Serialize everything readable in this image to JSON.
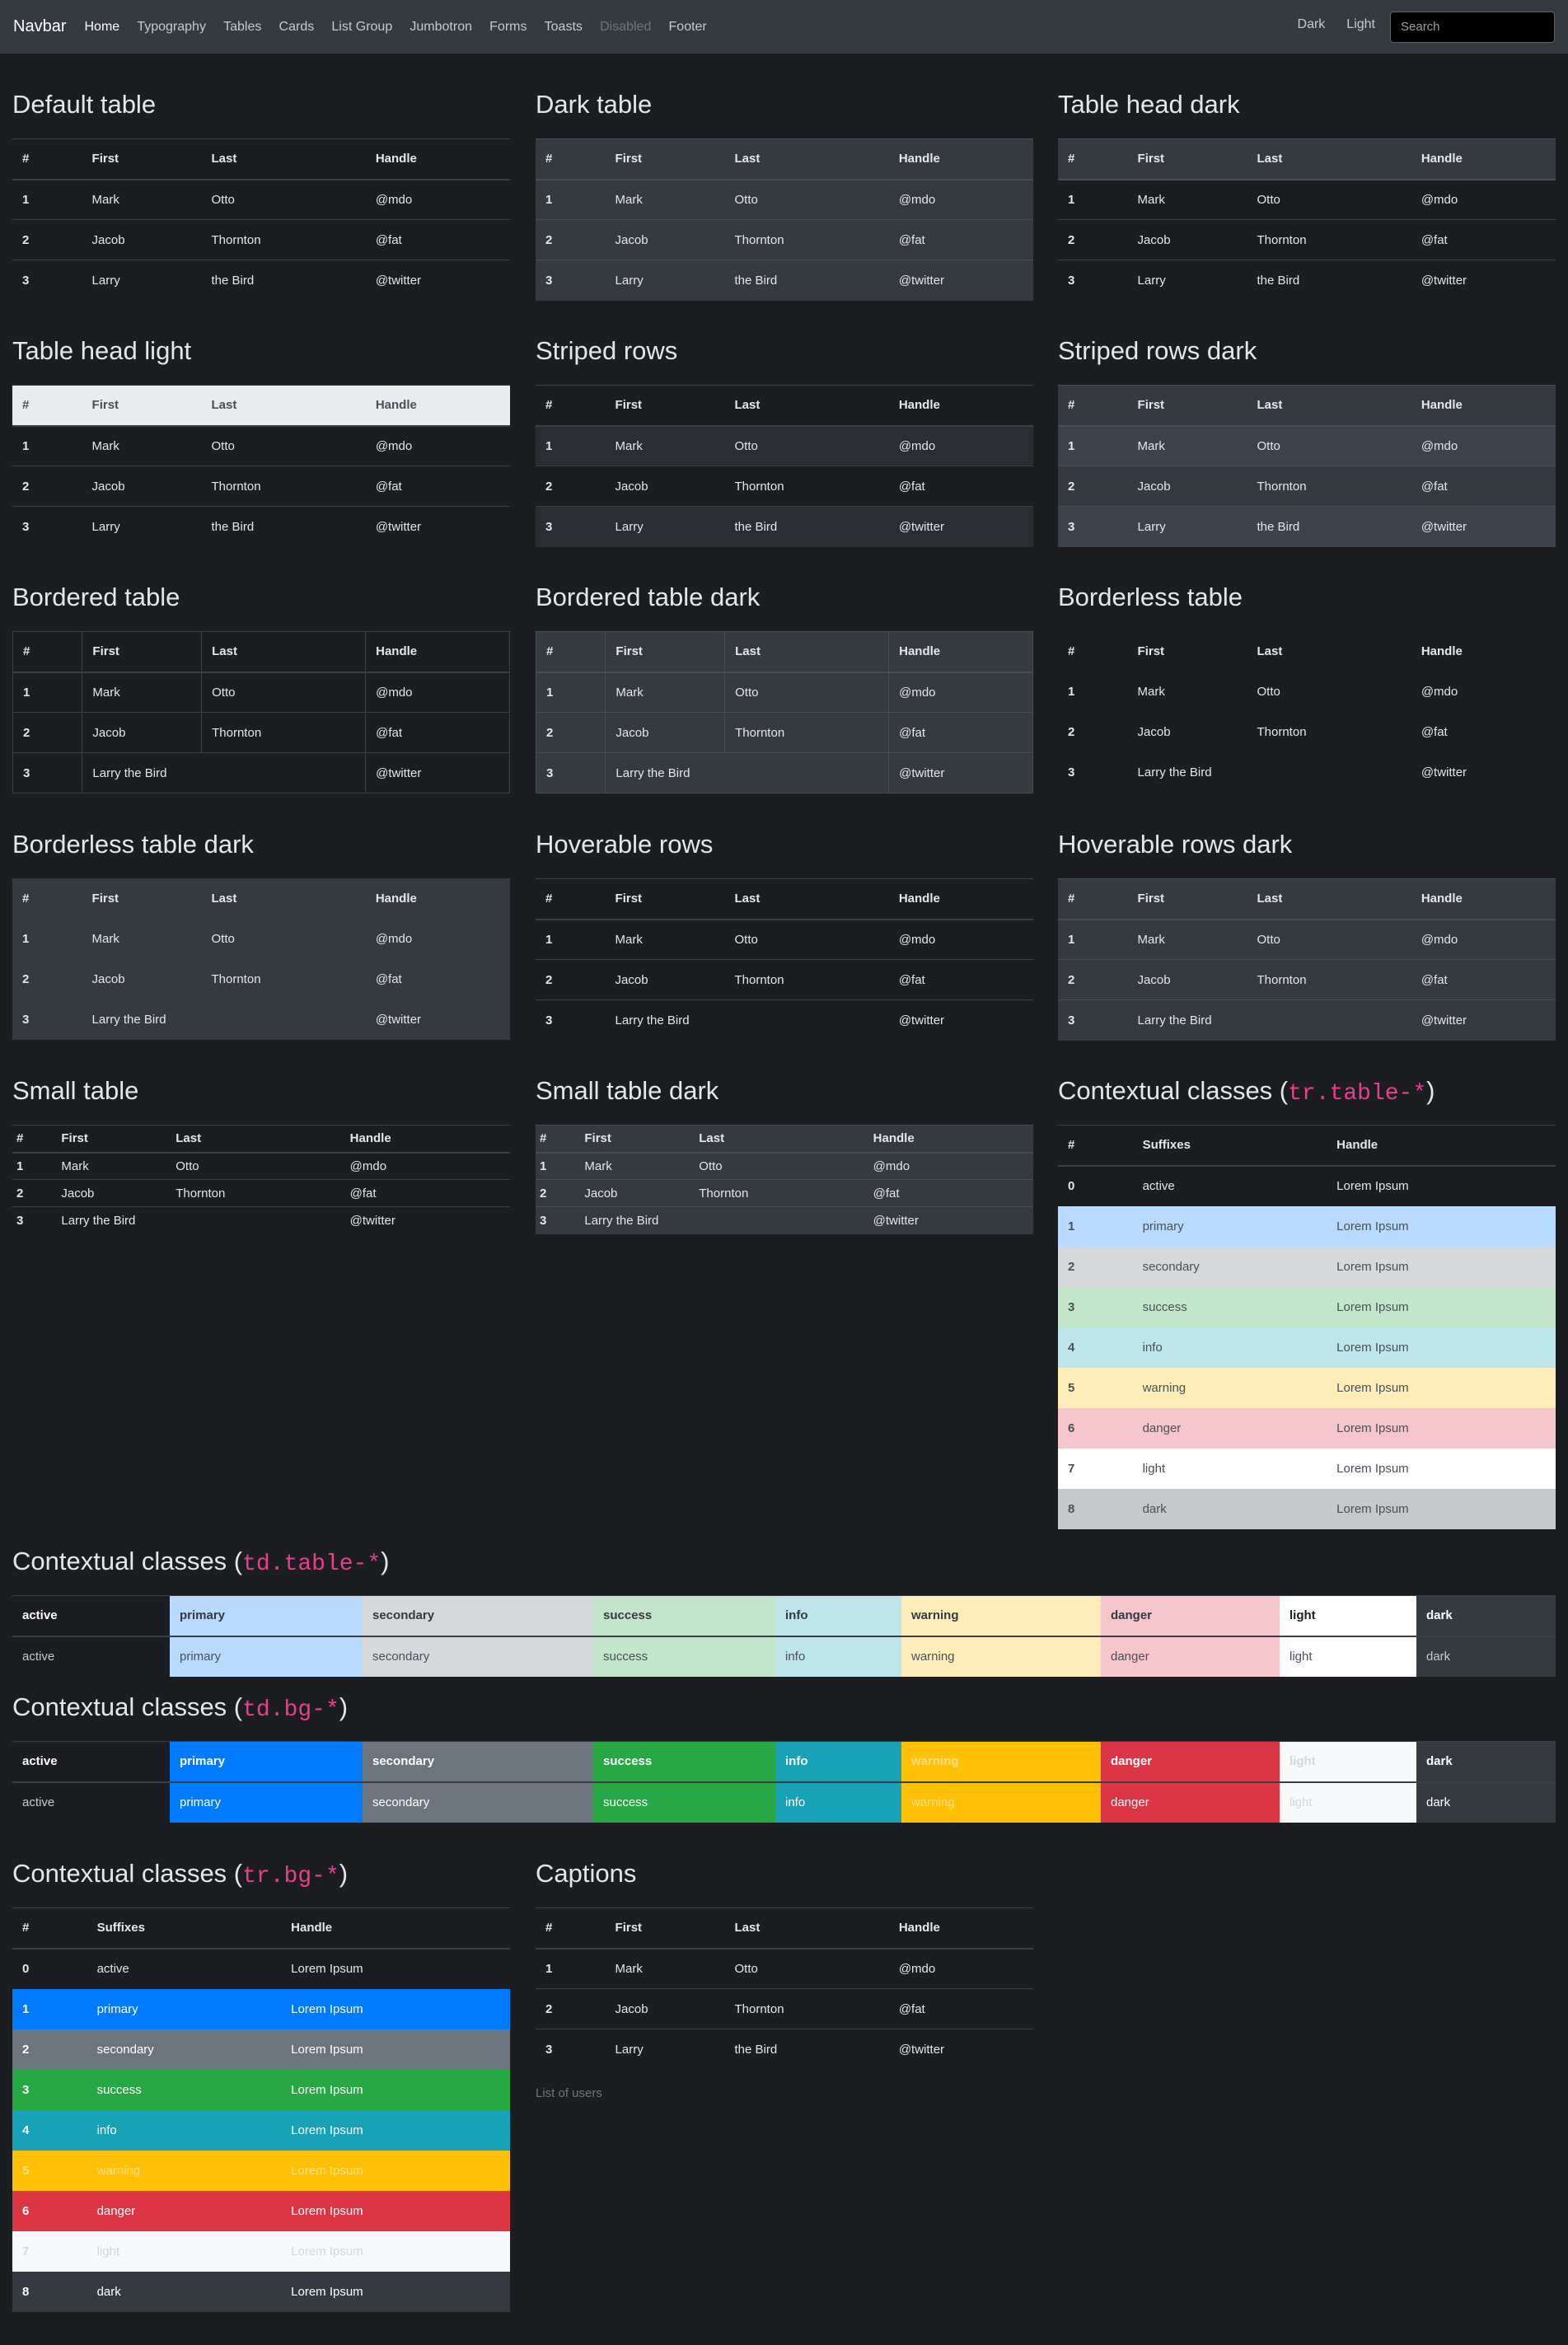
{
  "navbar": {
    "brand": "Navbar",
    "links": [
      "Home",
      "Typography",
      "Tables",
      "Cards",
      "List Group",
      "Jumbotron",
      "Forms",
      "Toasts",
      "Disabled",
      "Footer"
    ],
    "theme_dark": "Dark",
    "theme_light": "Light",
    "search_placeholder": "Search"
  },
  "basic": {
    "headers": [
      "#",
      "First",
      "Last",
      "Handle"
    ],
    "rows": [
      [
        "1",
        "Mark",
        "Otto",
        "@mdo"
      ],
      [
        "2",
        "Jacob",
        "Thornton",
        "@fat"
      ],
      [
        "3",
        "Larry",
        "the Bird",
        "@twitter"
      ]
    ],
    "row3_merged": "Larry the Bird"
  },
  "titles": {
    "default": "Default table",
    "dark": "Dark table",
    "head_dark": "Table head dark",
    "head_light": "Table head light",
    "striped": "Striped rows",
    "striped_dark": "Striped rows dark",
    "bordered": "Bordered table",
    "bordered_dark": "Bordered table dark",
    "borderless": "Borderless table",
    "borderless_dark": "Borderless table dark",
    "hoverable": "Hoverable rows",
    "hoverable_dark": "Hoverable rows dark",
    "small": "Small table",
    "small_dark": "Small table dark",
    "ctx_prefix": "Contextual classes (",
    "ctx_suffix": ")",
    "ctx_tr_table": "tr.table-*",
    "ctx_td_table": "td.table-*",
    "ctx_td_bg": "td.bg-*",
    "ctx_tr_bg": "tr.bg-*",
    "captions": "Captions"
  },
  "contextual": {
    "headers": [
      "#",
      "Suffixes",
      "Handle"
    ],
    "rows": [
      [
        "0",
        "active",
        "Lorem Ipsum"
      ],
      [
        "1",
        "primary",
        "Lorem Ipsum"
      ],
      [
        "2",
        "secondary",
        "Lorem Ipsum"
      ],
      [
        "3",
        "success",
        "Lorem Ipsum"
      ],
      [
        "4",
        "info",
        "Lorem Ipsum"
      ],
      [
        "5",
        "warning",
        "Lorem Ipsum"
      ],
      [
        "6",
        "danger",
        "Lorem Ipsum"
      ],
      [
        "7",
        "light",
        "Lorem Ipsum"
      ],
      [
        "8",
        "dark",
        "Lorem Ipsum"
      ]
    ],
    "suffixes": [
      "active",
      "primary",
      "secondary",
      "success",
      "info",
      "warning",
      "danger",
      "light",
      "dark"
    ]
  },
  "caption_text": "List of users",
  "colors": {
    "primary": "#007bff",
    "secondary": "#6c757d",
    "success": "#28a745",
    "info": "#17a2b8",
    "warning": "#ffc107",
    "danger": "#dc3545",
    "light": "#f8f9fa",
    "dark": "#343a40",
    "accent_code": "#e83e8c"
  }
}
